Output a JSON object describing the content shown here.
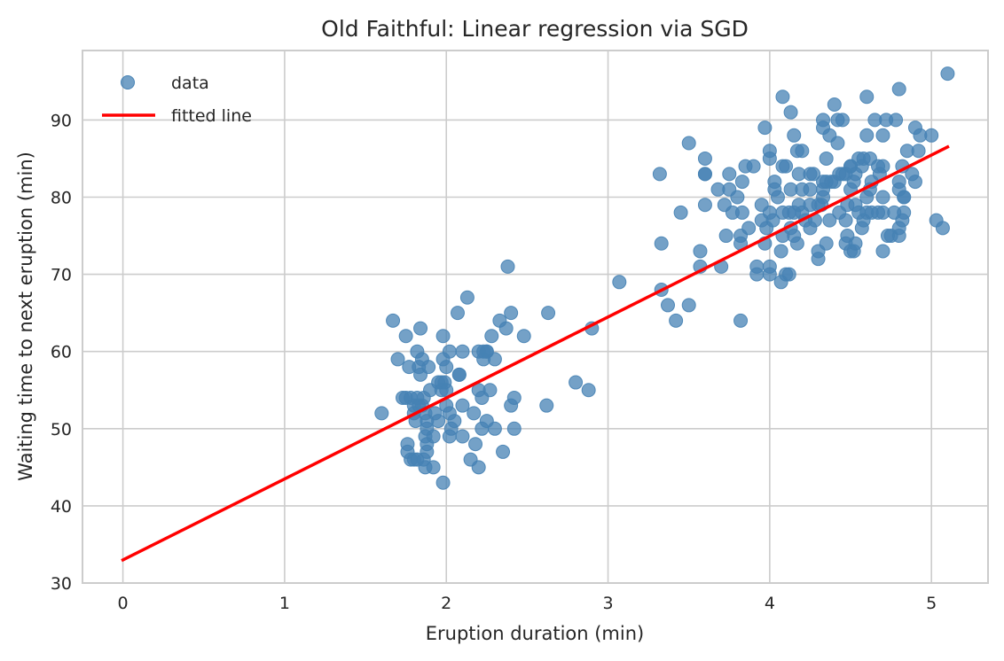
{
  "chart_data": {
    "type": "scatter",
    "title": "Old Faithful: Linear regression via SGD",
    "xlabel": "Eruption duration (min)",
    "ylabel": "Waiting time to next eruption (min)",
    "xlim": [
      -0.25,
      5.35
    ],
    "ylim": [
      30,
      99
    ],
    "xticks": [
      0,
      1,
      2,
      3,
      4,
      5
    ],
    "yticks": [
      30,
      40,
      50,
      60,
      70,
      80,
      90
    ],
    "grid": true,
    "legend_position": "upper-left",
    "colors": {
      "points": "#4682b4",
      "line": "#ff0000",
      "grid": "#cccccc",
      "spine": "#cccccc"
    },
    "series": [
      {
        "name": "data",
        "kind": "scatter",
        "points": [
          [
            1.6,
            52
          ],
          [
            1.67,
            64
          ],
          [
            1.7,
            59
          ],
          [
            1.73,
            54
          ],
          [
            1.75,
            62
          ],
          [
            1.75,
            54
          ],
          [
            1.76,
            48
          ],
          [
            1.76,
            47
          ],
          [
            1.77,
            58
          ],
          [
            1.78,
            46
          ],
          [
            1.78,
            54
          ],
          [
            1.8,
            53
          ],
          [
            1.8,
            46
          ],
          [
            1.8,
            52
          ],
          [
            1.81,
            51
          ],
          [
            1.82,
            60
          ],
          [
            1.82,
            54
          ],
          [
            1.82,
            46
          ],
          [
            1.83,
            58
          ],
          [
            1.83,
            53
          ],
          [
            1.84,
            57
          ],
          [
            1.84,
            63
          ],
          [
            1.85,
            59
          ],
          [
            1.85,
            53
          ],
          [
            1.86,
            46
          ],
          [
            1.86,
            54
          ],
          [
            1.87,
            52
          ],
          [
            1.87,
            49
          ],
          [
            1.87,
            45
          ],
          [
            1.88,
            50
          ],
          [
            1.88,
            47
          ],
          [
            1.88,
            51
          ],
          [
            1.88,
            48
          ],
          [
            1.89,
            58
          ],
          [
            1.9,
            55
          ],
          [
            1.92,
            49
          ],
          [
            1.92,
            45
          ],
          [
            1.93,
            52
          ],
          [
            1.95,
            51
          ],
          [
            1.95,
            56
          ],
          [
            1.97,
            55
          ],
          [
            1.97,
            56
          ],
          [
            1.98,
            59
          ],
          [
            1.98,
            62
          ],
          [
            1.98,
            43
          ],
          [
            1.99,
            56
          ],
          [
            2.0,
            58
          ],
          [
            2.0,
            53
          ],
          [
            2.0,
            55
          ],
          [
            2.02,
            60
          ],
          [
            2.02,
            52
          ],
          [
            2.02,
            49
          ],
          [
            2.03,
            50
          ],
          [
            2.05,
            51
          ],
          [
            2.07,
            65
          ],
          [
            2.08,
            57
          ],
          [
            2.08,
            57
          ],
          [
            2.1,
            49
          ],
          [
            2.1,
            60
          ],
          [
            2.1,
            53
          ],
          [
            2.13,
            67
          ],
          [
            2.15,
            46
          ],
          [
            2.17,
            52
          ],
          [
            2.18,
            48
          ],
          [
            2.2,
            55
          ],
          [
            2.2,
            60
          ],
          [
            2.2,
            45
          ],
          [
            2.22,
            54
          ],
          [
            2.22,
            50
          ],
          [
            2.23,
            60
          ],
          [
            2.23,
            59
          ],
          [
            2.25,
            60
          ],
          [
            2.25,
            51
          ],
          [
            2.25,
            60
          ],
          [
            2.27,
            55
          ],
          [
            2.28,
            62
          ],
          [
            2.3,
            50
          ],
          [
            2.3,
            59
          ],
          [
            2.33,
            64
          ],
          [
            2.35,
            47
          ],
          [
            2.37,
            63
          ],
          [
            2.38,
            71
          ],
          [
            2.4,
            65
          ],
          [
            2.4,
            53
          ],
          [
            2.42,
            54
          ],
          [
            2.42,
            50
          ],
          [
            2.48,
            62
          ],
          [
            2.62,
            53
          ],
          [
            2.63,
            65
          ],
          [
            2.8,
            56
          ],
          [
            2.88,
            55
          ],
          [
            2.9,
            63
          ],
          [
            3.07,
            69
          ],
          [
            3.32,
            83
          ],
          [
            3.33,
            68
          ],
          [
            3.33,
            74
          ],
          [
            3.37,
            66
          ],
          [
            3.42,
            64
          ],
          [
            3.45,
            78
          ],
          [
            3.5,
            66
          ],
          [
            3.5,
            87
          ],
          [
            3.57,
            71
          ],
          [
            3.57,
            73
          ],
          [
            3.6,
            83
          ],
          [
            3.6,
            85
          ],
          [
            3.6,
            83
          ],
          [
            3.6,
            79
          ],
          [
            3.68,
            81
          ],
          [
            3.7,
            71
          ],
          [
            3.72,
            79
          ],
          [
            3.73,
            75
          ],
          [
            3.75,
            81
          ],
          [
            3.75,
            83
          ],
          [
            3.77,
            78
          ],
          [
            3.8,
            80
          ],
          [
            3.82,
            75
          ],
          [
            3.82,
            74
          ],
          [
            3.82,
            64
          ],
          [
            3.83,
            82
          ],
          [
            3.83,
            78
          ],
          [
            3.85,
            84
          ],
          [
            3.87,
            76
          ],
          [
            3.9,
            84
          ],
          [
            3.92,
            71
          ],
          [
            3.92,
            70
          ],
          [
            3.95,
            79
          ],
          [
            3.95,
            77
          ],
          [
            3.97,
            89
          ],
          [
            3.97,
            74
          ],
          [
            3.98,
            76
          ],
          [
            4.0,
            86
          ],
          [
            4.0,
            70
          ],
          [
            4.0,
            85
          ],
          [
            4.0,
            71
          ],
          [
            4.0,
            78
          ],
          [
            4.02,
            77
          ],
          [
            4.03,
            82
          ],
          [
            4.03,
            81
          ],
          [
            4.05,
            80
          ],
          [
            4.07,
            69
          ],
          [
            4.07,
            73
          ],
          [
            4.08,
            93
          ],
          [
            4.08,
            75
          ],
          [
            4.08,
            78
          ],
          [
            4.08,
            84
          ],
          [
            4.1,
            70
          ],
          [
            4.1,
            84
          ],
          [
            4.12,
            70
          ],
          [
            4.12,
            78
          ],
          [
            4.13,
            81
          ],
          [
            4.13,
            76
          ],
          [
            4.13,
            91
          ],
          [
            4.15,
            75
          ],
          [
            4.15,
            78
          ],
          [
            4.15,
            88
          ],
          [
            4.17,
            74
          ],
          [
            4.17,
            86
          ],
          [
            4.18,
            79
          ],
          [
            4.18,
            83
          ],
          [
            4.2,
            86
          ],
          [
            4.2,
            81
          ],
          [
            4.2,
            78
          ],
          [
            4.22,
            77
          ],
          [
            4.25,
            83
          ],
          [
            4.25,
            76
          ],
          [
            4.25,
            81
          ],
          [
            4.25,
            79
          ],
          [
            4.27,
            83
          ],
          [
            4.28,
            77
          ],
          [
            4.3,
            79
          ],
          [
            4.3,
            72
          ],
          [
            4.3,
            73
          ],
          [
            4.32,
            79
          ],
          [
            4.33,
            81
          ],
          [
            4.33,
            80
          ],
          [
            4.33,
            90
          ],
          [
            4.33,
            82
          ],
          [
            4.33,
            89
          ],
          [
            4.35,
            74
          ],
          [
            4.35,
            85
          ],
          [
            4.35,
            82
          ],
          [
            4.37,
            88
          ],
          [
            4.37,
            77
          ],
          [
            4.38,
            82
          ],
          [
            4.4,
            82
          ],
          [
            4.4,
            92
          ],
          [
            4.42,
            90
          ],
          [
            4.42,
            87
          ],
          [
            4.43,
            78
          ],
          [
            4.43,
            83
          ],
          [
            4.45,
            90
          ],
          [
            4.45,
            83
          ],
          [
            4.47,
            77
          ],
          [
            4.47,
            83
          ],
          [
            4.47,
            74
          ],
          [
            4.48,
            75
          ],
          [
            4.48,
            79
          ],
          [
            4.5,
            73
          ],
          [
            4.5,
            84
          ],
          [
            4.5,
            81
          ],
          [
            4.5,
            84
          ],
          [
            4.52,
            82
          ],
          [
            4.52,
            73
          ],
          [
            4.53,
            83
          ],
          [
            4.53,
            74
          ],
          [
            4.53,
            79
          ],
          [
            4.55,
            85
          ],
          [
            4.55,
            78
          ],
          [
            4.57,
            76
          ],
          [
            4.57,
            84
          ],
          [
            4.58,
            77
          ],
          [
            4.58,
            85
          ],
          [
            4.6,
            80
          ],
          [
            4.6,
            78
          ],
          [
            4.6,
            88
          ],
          [
            4.6,
            93
          ],
          [
            4.62,
            85
          ],
          [
            4.62,
            81
          ],
          [
            4.63,
            82
          ],
          [
            4.63,
            78
          ],
          [
            4.65,
            90
          ],
          [
            4.67,
            78
          ],
          [
            4.67,
            84
          ],
          [
            4.68,
            83
          ],
          [
            4.7,
            73
          ],
          [
            4.7,
            88
          ],
          [
            4.7,
            78
          ],
          [
            4.7,
            80
          ],
          [
            4.7,
            84
          ],
          [
            4.72,
            90
          ],
          [
            4.73,
            75
          ],
          [
            4.75,
            75
          ],
          [
            4.77,
            78
          ],
          [
            4.78,
            90
          ],
          [
            4.8,
            82
          ],
          [
            4.8,
            94
          ],
          [
            4.8,
            75
          ],
          [
            4.8,
            81
          ],
          [
            4.8,
            76
          ],
          [
            4.82,
            77
          ],
          [
            4.82,
            84
          ],
          [
            4.83,
            80
          ],
          [
            4.83,
            78
          ],
          [
            4.83,
            80
          ],
          [
            4.85,
            86
          ],
          [
            4.88,
            83
          ],
          [
            4.9,
            89
          ],
          [
            4.9,
            82
          ],
          [
            4.92,
            86
          ],
          [
            4.93,
            88
          ],
          [
            5.0,
            88
          ],
          [
            5.03,
            77
          ],
          [
            5.07,
            76
          ],
          [
            5.1,
            96
          ]
        ]
      },
      {
        "name": "fitted line",
        "kind": "line",
        "points": [
          [
            0.0,
            33.0
          ],
          [
            5.1,
            86.5
          ]
        ]
      }
    ]
  }
}
